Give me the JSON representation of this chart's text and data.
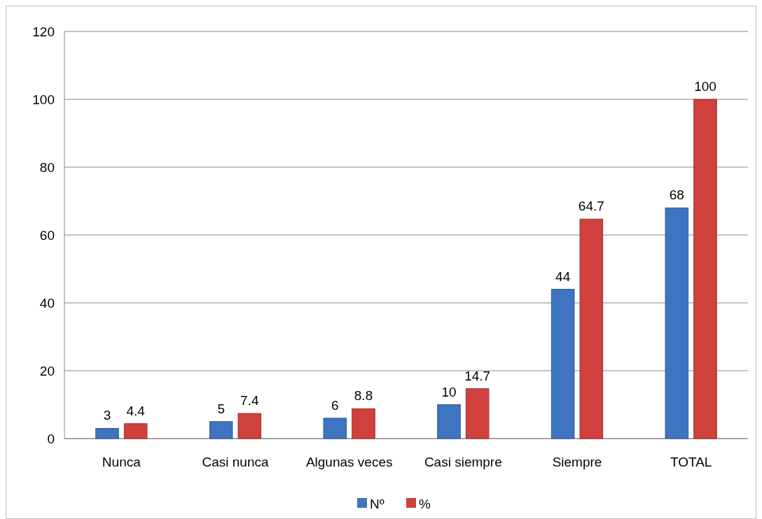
{
  "chart_data": {
    "type": "bar",
    "categories": [
      "Nunca",
      "Casi nunca",
      "Algunas veces",
      "Casi siempre",
      "Siempre",
      "TOTAL"
    ],
    "series": [
      {
        "name": "Nº",
        "color": "#3f74c0",
        "values": [
          3,
          5,
          6,
          10,
          44,
          68
        ]
      },
      {
        "name": "%",
        "color": "#d0403c",
        "values": [
          4.4,
          7.4,
          8.8,
          14.7,
          64.7,
          100
        ]
      }
    ],
    "ylim": [
      0,
      120
    ],
    "yticks": [
      0,
      20,
      40,
      60,
      80,
      100,
      120
    ],
    "grid": "y",
    "legend": "bottom",
    "data_labels": true
  }
}
